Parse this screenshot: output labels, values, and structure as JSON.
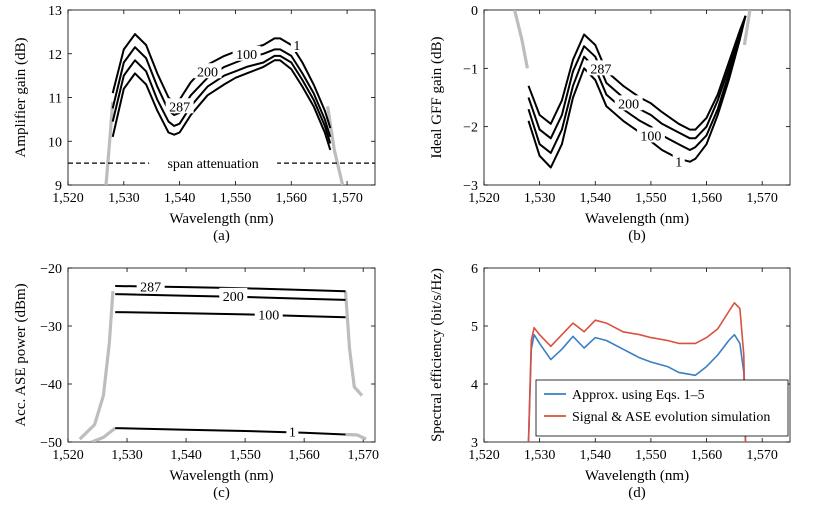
{
  "chart_data": [
    {
      "type": "line",
      "panel_label": "(a)",
      "xlabel": "Wavelength (nm)",
      "ylabel": "Amplifier gain (dB)",
      "xlim": [
        1520,
        1575
      ],
      "ylim": [
        9,
        13
      ],
      "xticks": [
        1520,
        1530,
        1540,
        1550,
        1560,
        1570
      ],
      "xtick_labels": [
        "1,520",
        "1,530",
        "1,540",
        "1,550",
        "1,560",
        "1,570"
      ],
      "yticks": [
        9,
        10,
        11,
        12,
        13
      ],
      "ytick_labels": [
        "9",
        "10",
        "11",
        "12",
        "13"
      ],
      "grid": false,
      "annotations": [
        {
          "text": "1",
          "x": 1561,
          "y": 12.2
        },
        {
          "text": "100",
          "x": 1552,
          "y": 12.0
        },
        {
          "text": "200",
          "x": 1545,
          "y": 11.6
        },
        {
          "text": "287",
          "x": 1540,
          "y": 10.8
        },
        {
          "text": "span attenuation",
          "x": 1546,
          "y": 9.5
        }
      ],
      "reference_line": {
        "y": 9.5,
        "style": "dashed",
        "label": "span attenuation"
      },
      "band_edges": {
        "left": [
          [
            1526.8,
            9.0
          ],
          [
            1527.4,
            9.9
          ],
          [
            1528.0,
            10.9
          ]
        ],
        "right": [
          [
            1566.5,
            10.8
          ],
          [
            1567.7,
            9.8
          ],
          [
            1569.2,
            9.0
          ]
        ]
      },
      "series": [
        {
          "name": "1",
          "x": [
            1528,
            1530,
            1532,
            1534,
            1536,
            1538,
            1539,
            1540,
            1542,
            1545,
            1548,
            1550,
            1552,
            1555,
            1557,
            1558,
            1560,
            1562,
            1564,
            1566,
            1567
          ],
          "y": [
            11.1,
            12.1,
            12.45,
            12.2,
            11.55,
            11.0,
            10.9,
            10.95,
            11.35,
            11.75,
            11.95,
            12.05,
            12.1,
            12.2,
            12.35,
            12.35,
            12.2,
            11.8,
            11.3,
            10.7,
            10.3
          ]
        },
        {
          "name": "100",
          "x": [
            1528,
            1530,
            1532,
            1534,
            1536,
            1538,
            1539,
            1540,
            1542,
            1545,
            1548,
            1550,
            1552,
            1555,
            1557,
            1558,
            1560,
            1562,
            1564,
            1566,
            1567
          ],
          "y": [
            10.75,
            11.8,
            12.15,
            11.9,
            11.25,
            10.7,
            10.6,
            10.65,
            11.05,
            11.45,
            11.7,
            11.8,
            11.9,
            12.0,
            12.1,
            12.1,
            11.95,
            11.55,
            11.1,
            10.5,
            10.1
          ]
        },
        {
          "name": "200",
          "x": [
            1528,
            1530,
            1532,
            1534,
            1536,
            1538,
            1539,
            1540,
            1542,
            1545,
            1548,
            1550,
            1552,
            1555,
            1557,
            1558,
            1560,
            1562,
            1564,
            1566,
            1567
          ],
          "y": [
            10.45,
            11.5,
            11.85,
            11.6,
            10.95,
            10.45,
            10.35,
            10.4,
            10.8,
            11.25,
            11.5,
            11.6,
            11.7,
            11.8,
            11.95,
            11.95,
            11.8,
            11.4,
            10.95,
            10.35,
            9.95
          ]
        },
        {
          "name": "287",
          "x": [
            1528,
            1530,
            1532,
            1534,
            1536,
            1538,
            1539,
            1540,
            1542,
            1545,
            1548,
            1550,
            1552,
            1555,
            1557,
            1558,
            1560,
            1562,
            1564,
            1566,
            1567
          ],
          "y": [
            10.1,
            11.2,
            11.55,
            11.3,
            10.7,
            10.2,
            10.15,
            10.2,
            10.6,
            11.05,
            11.3,
            11.45,
            11.55,
            11.7,
            11.85,
            11.85,
            11.65,
            11.25,
            10.8,
            10.2,
            9.8
          ]
        }
      ]
    },
    {
      "type": "line",
      "panel_label": "(b)",
      "xlabel": "Wavelength (nm)",
      "ylabel": "Ideal GFF gain (dB)",
      "xlim": [
        1520,
        1575
      ],
      "ylim": [
        -3,
        0
      ],
      "xticks": [
        1520,
        1530,
        1540,
        1550,
        1560,
        1570
      ],
      "xtick_labels": [
        "1,520",
        "1,530",
        "1,540",
        "1,550",
        "1,560",
        "1,570"
      ],
      "yticks": [
        -3,
        -2,
        -1,
        0
      ],
      "ytick_labels": [
        "−3",
        "−2",
        "−1",
        "0"
      ],
      "grid": false,
      "annotations": [
        {
          "text": "287",
          "x": 1541,
          "y": -1.0
        },
        {
          "text": "200",
          "x": 1546,
          "y": -1.6
        },
        {
          "text": "100",
          "x": 1550,
          "y": -2.15
        },
        {
          "text": "1",
          "x": 1555,
          "y": -2.6
        }
      ],
      "band_edges": {
        "left": [
          [
            1525.5,
            0.0
          ],
          [
            1526.8,
            -0.5
          ],
          [
            1527.8,
            -1.0
          ]
        ],
        "right": [
          [
            1567.8,
            0.0
          ],
          [
            1567.3,
            -0.3
          ],
          [
            1566.8,
            -0.6
          ]
        ]
      },
      "series": [
        {
          "name": "1",
          "x": [
            1528,
            1530,
            1532,
            1534,
            1536,
            1538,
            1540,
            1542,
            1545,
            1548,
            1550,
            1552,
            1555,
            1557,
            1558,
            1560,
            1562,
            1564,
            1566,
            1567
          ],
          "y": [
            -1.9,
            -2.5,
            -2.7,
            -2.3,
            -1.5,
            -1.0,
            -1.2,
            -1.65,
            -1.9,
            -2.1,
            -2.25,
            -2.4,
            -2.55,
            -2.6,
            -2.55,
            -2.3,
            -1.8,
            -1.2,
            -0.5,
            -0.1
          ]
        },
        {
          "name": "100",
          "x": [
            1528,
            1530,
            1532,
            1534,
            1536,
            1538,
            1540,
            1542,
            1545,
            1548,
            1550,
            1552,
            1555,
            1557,
            1558,
            1560,
            1562,
            1564,
            1566,
            1567
          ],
          "y": [
            -1.7,
            -2.3,
            -2.45,
            -2.05,
            -1.3,
            -0.8,
            -1.0,
            -1.45,
            -1.7,
            -1.9,
            -2.0,
            -2.15,
            -2.3,
            -2.4,
            -2.35,
            -2.15,
            -1.7,
            -1.1,
            -0.45,
            -0.1
          ]
        },
        {
          "name": "200",
          "x": [
            1528,
            1530,
            1532,
            1534,
            1536,
            1538,
            1540,
            1542,
            1545,
            1548,
            1550,
            1552,
            1555,
            1557,
            1558,
            1560,
            1562,
            1564,
            1566,
            1567
          ],
          "y": [
            -1.5,
            -2.05,
            -2.2,
            -1.8,
            -1.05,
            -0.62,
            -0.8,
            -1.25,
            -1.5,
            -1.7,
            -1.8,
            -1.95,
            -2.1,
            -2.2,
            -2.2,
            -2.0,
            -1.55,
            -1.0,
            -0.4,
            -0.1
          ]
        },
        {
          "name": "287",
          "x": [
            1528,
            1530,
            1532,
            1534,
            1536,
            1538,
            1540,
            1542,
            1545,
            1548,
            1550,
            1552,
            1555,
            1557,
            1558,
            1560,
            1562,
            1564,
            1566,
            1567
          ],
          "y": [
            -1.3,
            -1.8,
            -1.95,
            -1.55,
            -0.85,
            -0.42,
            -0.6,
            -1.05,
            -1.3,
            -1.5,
            -1.6,
            -1.75,
            -1.95,
            -2.05,
            -2.05,
            -1.85,
            -1.45,
            -0.9,
            -0.35,
            -0.1
          ]
        }
      ]
    },
    {
      "type": "line",
      "panel_label": "(c)",
      "xlabel": "Wavelength (nm)",
      "ylabel": "Acc. ASE power (dBm)",
      "xlim": [
        1520,
        1572
      ],
      "ylim": [
        -50,
        -20
      ],
      "xticks": [
        1520,
        1530,
        1540,
        1550,
        1560,
        1570
      ],
      "xtick_labels": [
        "1,520",
        "1,530",
        "1,540",
        "1,550",
        "1,560",
        "1,570"
      ],
      "yticks": [
        -50,
        -40,
        -30,
        -20
      ],
      "ytick_labels": [
        "−50",
        "−40",
        "−30",
        "−20"
      ],
      "grid": false,
      "annotations": [
        {
          "text": "287",
          "x": 1534,
          "y": -23.2
        },
        {
          "text": "200",
          "x": 1548,
          "y": -24.8
        },
        {
          "text": "100",
          "x": 1554,
          "y": -28.0
        },
        {
          "text": "1",
          "x": 1558,
          "y": -48.2
        }
      ],
      "band_edges": {
        "left": [
          [
            1522,
            -49.5
          ],
          [
            1524.5,
            -47
          ],
          [
            1526,
            -42
          ],
          [
            1527,
            -33
          ],
          [
            1527.6,
            -24
          ]
        ],
        "right": [
          [
            1567,
            -24
          ],
          [
            1567.7,
            -34
          ],
          [
            1568.5,
            -40.5
          ],
          [
            1569.8,
            -42
          ]
        ],
        "floor": [
          [
            1524,
            -50
          ],
          [
            1526,
            -49.2
          ],
          [
            1528,
            -47.6
          ]
        ],
        "floor_right": [
          [
            1567,
            -48.7
          ],
          [
            1569,
            -48.8
          ],
          [
            1570.5,
            -49.5
          ]
        ]
      },
      "series": [
        {
          "name": "287",
          "x": [
            1528,
            1540,
            1550,
            1560,
            1567
          ],
          "y": [
            -23.1,
            -23.3,
            -23.5,
            -23.8,
            -24.0
          ]
        },
        {
          "name": "200",
          "x": [
            1528,
            1540,
            1550,
            1560,
            1567
          ],
          "y": [
            -24.5,
            -24.8,
            -25.0,
            -25.3,
            -25.5
          ]
        },
        {
          "name": "100",
          "x": [
            1528,
            1540,
            1550,
            1560,
            1567
          ],
          "y": [
            -27.6,
            -27.8,
            -28.0,
            -28.3,
            -28.5
          ]
        },
        {
          "name": "1",
          "x": [
            1528,
            1540,
            1550,
            1560,
            1567
          ],
          "y": [
            -47.6,
            -47.9,
            -48.1,
            -48.4,
            -48.7
          ]
        }
      ]
    },
    {
      "type": "line",
      "panel_label": "(d)",
      "xlabel": "Wavelength (nm)",
      "ylabel": "Spectral efficiency (bit/s/Hz)",
      "xlim": [
        1520,
        1575
      ],
      "ylim": [
        3,
        6
      ],
      "xticks": [
        1520,
        1530,
        1540,
        1550,
        1560,
        1570
      ],
      "xtick_labels": [
        "1,520",
        "1,530",
        "1,540",
        "1,550",
        "1,560",
        "1,570"
      ],
      "yticks": [
        3,
        4,
        5,
        6
      ],
      "ytick_labels": [
        "3",
        "4",
        "5",
        "6"
      ],
      "grid": false,
      "legend": {
        "position": "bottom-right"
      },
      "series": [
        {
          "name": "Approx. using Eqs. 1–5",
          "color": "#3a7fc1",
          "x": [
            1528,
            1528.5,
            1529,
            1530,
            1532,
            1534,
            1536,
            1538,
            1540,
            1542,
            1545,
            1548,
            1550,
            1553,
            1555,
            1558,
            1560,
            1562,
            1564,
            1565,
            1566,
            1566.7,
            1567.0
          ],
          "y": [
            3.0,
            4.6,
            4.85,
            4.7,
            4.42,
            4.6,
            4.82,
            4.62,
            4.8,
            4.75,
            4.6,
            4.45,
            4.38,
            4.3,
            4.2,
            4.15,
            4.3,
            4.5,
            4.75,
            4.85,
            4.7,
            4.2,
            3.0
          ]
        },
        {
          "name": "Signal & ASE evolution simulation",
          "color": "#d9503f",
          "x": [
            1528,
            1528.5,
            1529,
            1530,
            1532,
            1534,
            1536,
            1538,
            1540,
            1542,
            1545,
            1548,
            1550,
            1553,
            1555,
            1558,
            1560,
            1562,
            1564,
            1565,
            1566,
            1566.7,
            1567.0
          ],
          "y": [
            3.0,
            4.75,
            4.97,
            4.85,
            4.65,
            4.85,
            5.05,
            4.9,
            5.1,
            5.05,
            4.9,
            4.85,
            4.8,
            4.75,
            4.7,
            4.7,
            4.8,
            4.95,
            5.25,
            5.4,
            5.3,
            4.5,
            3.0
          ]
        }
      ]
    }
  ]
}
